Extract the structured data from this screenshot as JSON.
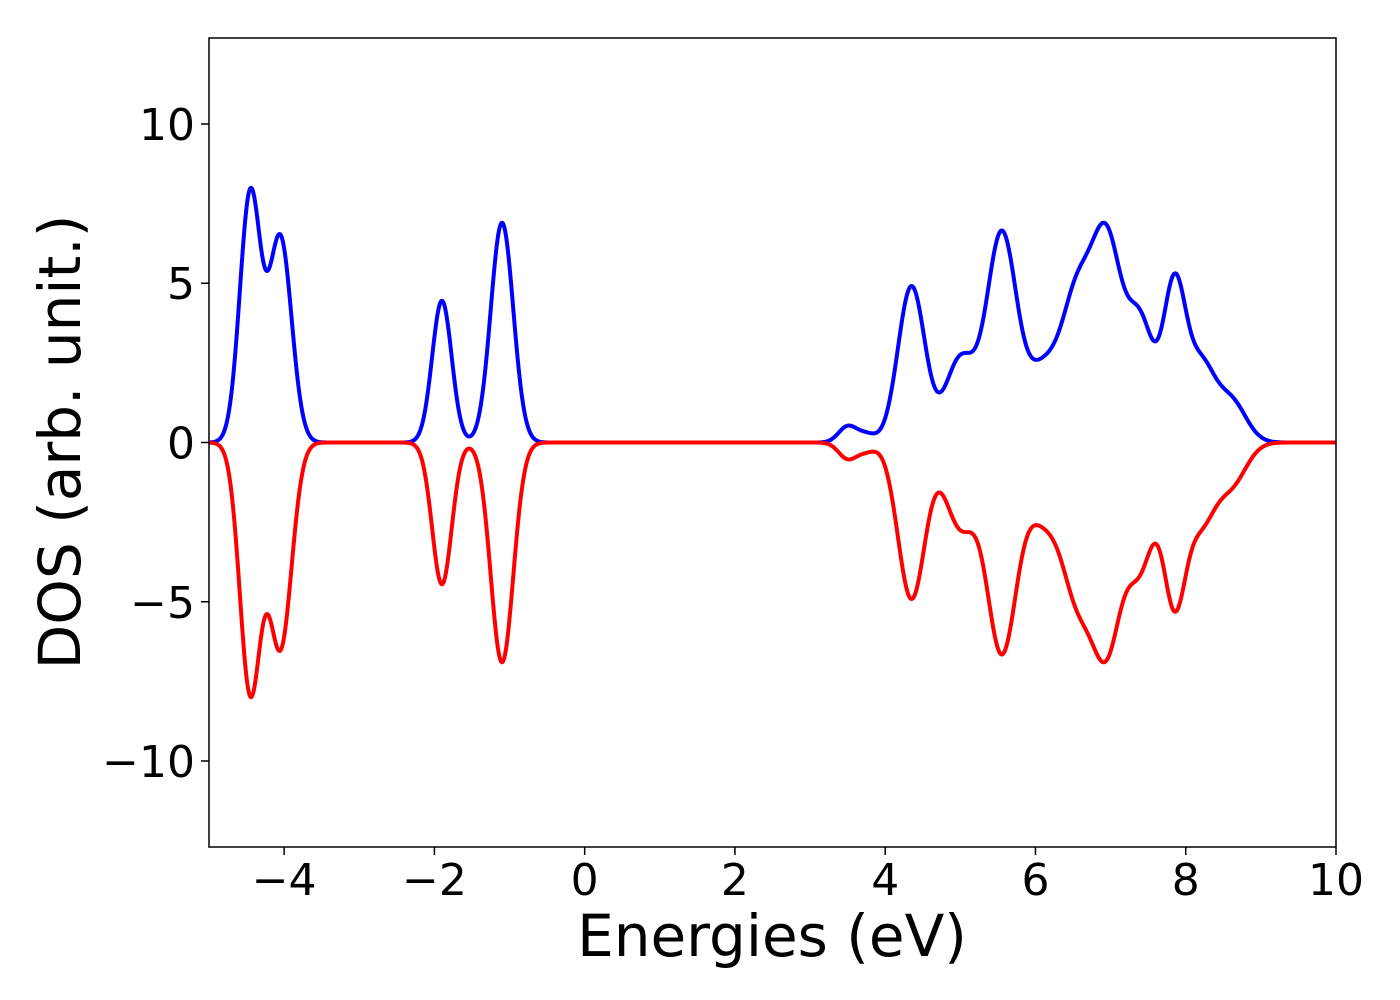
{
  "chart_data": {
    "type": "line",
    "xlabel": "Energies (eV)",
    "ylabel": "DOS (arb. unit.)",
    "xlim": [
      -5,
      10
    ],
    "ylim": [
      -12.7,
      12.7
    ],
    "x_ticks": [
      -4,
      -2,
      0,
      2,
      4,
      6,
      8,
      10
    ],
    "y_ticks": [
      -10,
      -5,
      0,
      5,
      10
    ],
    "x_tick_labels": [
      "−4",
      "−2",
      "0",
      "2",
      "4",
      "6",
      "8",
      "10"
    ],
    "y_tick_labels": [
      "−10",
      "−5",
      "0",
      "5",
      "10"
    ],
    "grid": false,
    "series": [
      {
        "color": "#0000ff",
        "sign": 1,
        "peaks": [
          {
            "center": -4.45,
            "amp": 7.8,
            "width": 0.14
          },
          {
            "center": -4.05,
            "amp": 6.4,
            "width": 0.15
          },
          {
            "center": -1.9,
            "amp": 4.45,
            "width": 0.13
          },
          {
            "center": -1.1,
            "amp": 6.9,
            "width": 0.15
          },
          {
            "center": 3.5,
            "amp": 0.5,
            "width": 0.12
          },
          {
            "center": 3.75,
            "amp": 0.25,
            "width": 0.12
          },
          {
            "center": 4.35,
            "amp": 4.9,
            "width": 0.18
          },
          {
            "center": 5.0,
            "amp": 2.6,
            "width": 0.2
          },
          {
            "center": 5.55,
            "amp": 6.5,
            "width": 0.2
          },
          {
            "center": 6.1,
            "amp": 2.2,
            "width": 0.22
          },
          {
            "center": 6.55,
            "amp": 4.2,
            "width": 0.2
          },
          {
            "center": 6.95,
            "amp": 6.1,
            "width": 0.2
          },
          {
            "center": 7.4,
            "amp": 3.6,
            "width": 0.18
          },
          {
            "center": 7.85,
            "amp": 4.8,
            "width": 0.15
          },
          {
            "center": 8.2,
            "amp": 2.3,
            "width": 0.18
          },
          {
            "center": 8.6,
            "amp": 1.3,
            "width": 0.2
          }
        ]
      },
      {
        "color": "#ff0000",
        "sign": -1,
        "peaks": [
          {
            "center": -4.45,
            "amp": 7.8,
            "width": 0.14
          },
          {
            "center": -4.05,
            "amp": 6.4,
            "width": 0.15
          },
          {
            "center": -1.9,
            "amp": 4.45,
            "width": 0.13
          },
          {
            "center": -1.1,
            "amp": 6.9,
            "width": 0.15
          },
          {
            "center": 3.5,
            "amp": 0.5,
            "width": 0.12
          },
          {
            "center": 3.75,
            "amp": 0.25,
            "width": 0.12
          },
          {
            "center": 4.35,
            "amp": 4.9,
            "width": 0.18
          },
          {
            "center": 5.0,
            "amp": 2.6,
            "width": 0.2
          },
          {
            "center": 5.55,
            "amp": 6.5,
            "width": 0.2
          },
          {
            "center": 6.1,
            "amp": 2.2,
            "width": 0.22
          },
          {
            "center": 6.55,
            "amp": 4.2,
            "width": 0.2
          },
          {
            "center": 6.95,
            "amp": 6.1,
            "width": 0.2
          },
          {
            "center": 7.4,
            "amp": 3.6,
            "width": 0.18
          },
          {
            "center": 7.85,
            "amp": 4.8,
            "width": 0.15
          },
          {
            "center": 8.2,
            "amp": 2.3,
            "width": 0.18
          },
          {
            "center": 8.6,
            "amp": 1.3,
            "width": 0.2
          }
        ]
      }
    ]
  }
}
